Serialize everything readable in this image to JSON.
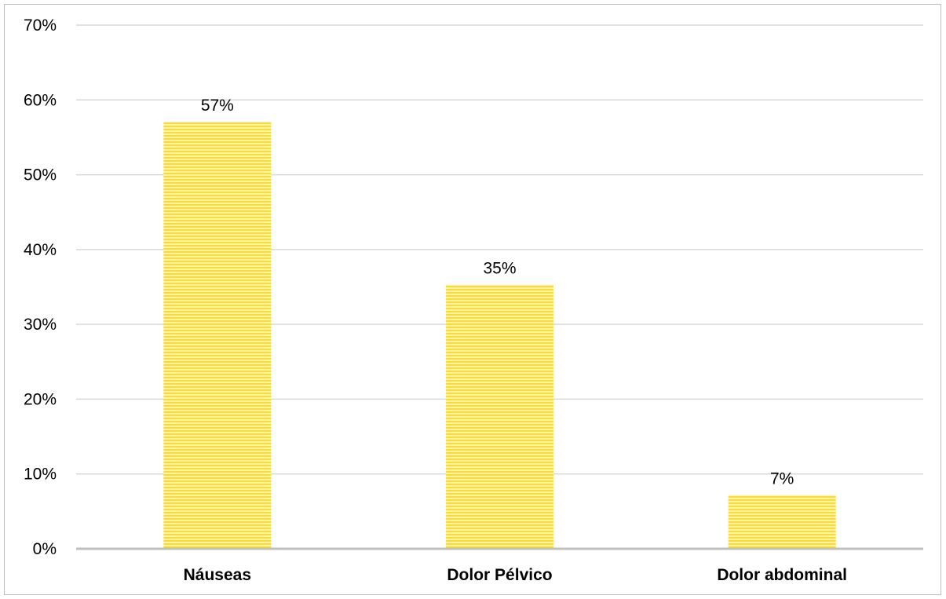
{
  "chart_data": {
    "type": "bar",
    "categories": [
      "Náuseas",
      "Dolor Pélvico",
      "Dolor abdominal"
    ],
    "values": [
      57.1,
      35.3,
      7.2
    ],
    "data_labels": [
      "57%",
      "35%",
      "7%"
    ],
    "title": "",
    "xlabel": "",
    "ylabel": "",
    "ylim": [
      0,
      70
    ],
    "yticks": [
      0,
      10,
      20,
      30,
      40,
      50,
      60,
      70
    ],
    "ytick_labels": [
      "0%",
      "10%",
      "20%",
      "30%",
      "40%",
      "50%",
      "60%",
      "70%"
    ],
    "grid": true,
    "legend": "none",
    "colors": {
      "bar_fill": "#fff2a0",
      "bar_stripe": "#f5dc3c",
      "gridline": "#d9d9d9",
      "axis": "#bfbfbf"
    }
  }
}
